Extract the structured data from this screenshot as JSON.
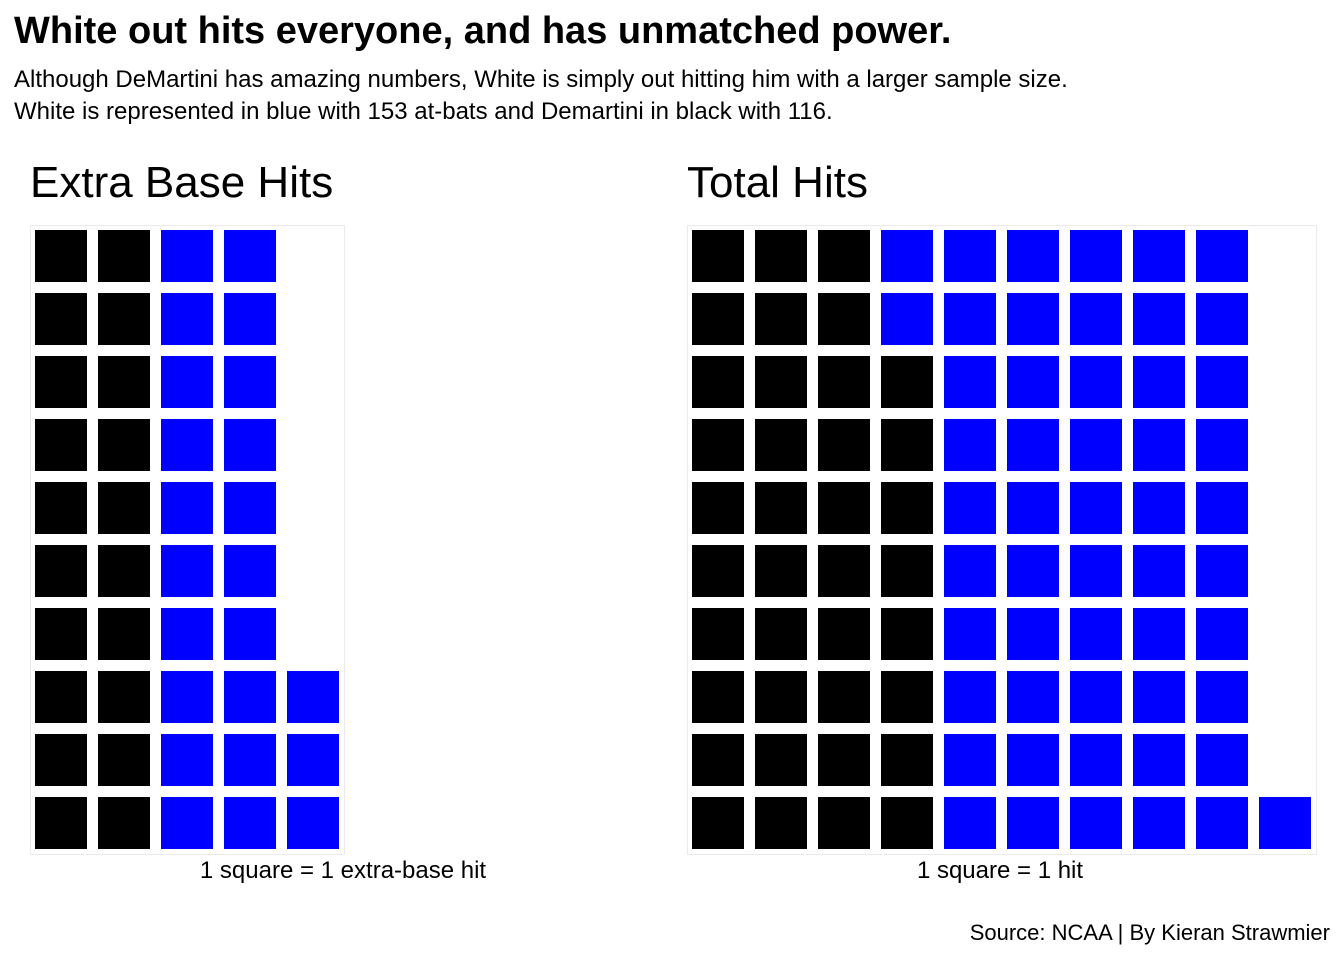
{
  "title": "White out hits everyone, and has unmatched power.",
  "subtitle_lines": [
    "Although DeMartini has amazing numbers, White is simply out hitting him with a larger sample size.",
    "White is represented in blue with 153 at-bats and Demartini in black with 116."
  ],
  "source": "Source: NCAA | By Kieran Strawmier",
  "colors": {
    "DeMartini": "#000000",
    "White": "#0000ff"
  },
  "chart_data": [
    {
      "type": "waffle",
      "title": "Extra Base Hits",
      "caption": "1 square = 1 extra-base hit",
      "rows": 10,
      "fill_order": "column-wise, bottom to top, left to right",
      "series": [
        {
          "name": "DeMartini",
          "value": 20,
          "color": "#000000"
        },
        {
          "name": "White",
          "value": 23,
          "color": "#0000ff"
        }
      ]
    },
    {
      "type": "waffle",
      "title": "Total Hits",
      "caption": "1 square = 1 hit",
      "rows": 10,
      "fill_order": "column-wise, bottom to top, left to right",
      "series": [
        {
          "name": "DeMartini",
          "value": 38,
          "color": "#000000"
        },
        {
          "name": "White",
          "value": 53,
          "color": "#0000ff"
        }
      ]
    }
  ]
}
